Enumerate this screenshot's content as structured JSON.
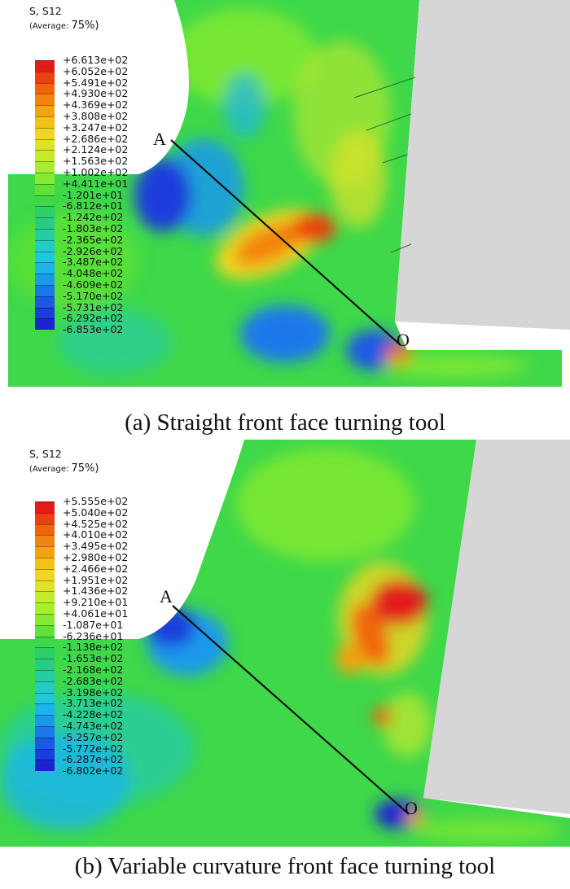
{
  "panel_a": {
    "legend_title": "S, S12",
    "legend_average_prefix": "(Average: ",
    "legend_average_value": "75%)",
    "legend_values": [
      "+6.613e+02",
      "+6.052e+02",
      "+5.491e+02",
      "+4.930e+02",
      "+4.369e+02",
      "+3.808e+02",
      "+3.247e+02",
      "+2.686e+02",
      "+2.124e+02",
      "+1.563e+02",
      "+1.002e+02",
      "+4.411e+01",
      "-1.201e+01",
      "-6.812e+01",
      "-1.242e+02",
      "-1.803e+02",
      "-2.365e+02",
      "-2.926e+02",
      "-3.487e+02",
      "-4.048e+02",
      "-4.609e+02",
      "-5.170e+02",
      "-5.731e+02",
      "-6.292e+02",
      "-6.853e+02"
    ],
    "point_a": "A",
    "point_o": "O",
    "caption": "(a) Straight front face turning tool"
  },
  "panel_b": {
    "legend_title": "S, S12",
    "legend_average_prefix": "(Average: ",
    "legend_average_value": "75%)",
    "legend_values": [
      "+5.555e+02",
      "+5.040e+02",
      "+4.525e+02",
      "+4.010e+02",
      "+3.495e+02",
      "+2.980e+02",
      "+2.466e+02",
      "+1.951e+02",
      "+1.436e+02",
      "+9.210e+01",
      "+4.061e+01",
      "-1.087e+01",
      "-6.236e+01",
      "-1.138e+02",
      "-1.653e+02",
      "-2.168e+02",
      "-2.683e+02",
      "-3.198e+02",
      "-3.713e+02",
      "-4.228e+02",
      "-4.743e+02",
      "-5.257e+02",
      "-5.772e+02",
      "-6.287e+02",
      "-6.802e+02"
    ],
    "point_a": "A",
    "point_o": "O",
    "caption": "(b) Variable curvature front face turning tool"
  },
  "colors": {
    "scale": [
      "#e21b1b",
      "#ee3f10",
      "#f2640c",
      "#f28410",
      "#f4a210",
      "#f5c018",
      "#f0d622",
      "#e0e22a",
      "#c6ea2c",
      "#a8ee2c",
      "#86ea2e",
      "#5ee236",
      "#3ed84a",
      "#2dd066",
      "#28cc86",
      "#26cca4",
      "#22ccc2",
      "#20c6dc",
      "#1cb4ea",
      "#1a98ec",
      "#1a78ea",
      "#1c58e4",
      "#1c3cdc",
      "#1a22d2"
    ],
    "tool": "#d6d6d6"
  }
}
